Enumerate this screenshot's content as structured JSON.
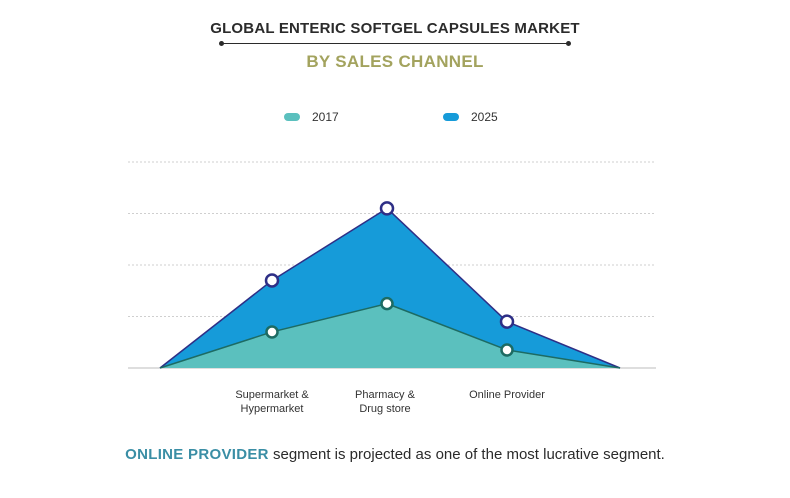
{
  "header": {
    "title": "GLOBAL ENTERIC SOFTGEL CAPSULES MARKET",
    "subtitle": "BY SALES CHANNEL"
  },
  "footnote": {
    "highlight": "ONLINE PROVIDER",
    "text": " segment is projected as one of the most lucrative segment."
  },
  "colors": {
    "series_2017": "#5bc0be",
    "series_2025": "#169bd9",
    "marker_2025": "#2e2f86",
    "marker_2017": "#1d6b63",
    "grid": "#cfcfcf"
  },
  "chart_data": {
    "type": "area",
    "categories": [
      "Supermarket & Hypermarket",
      "Pharmacy & Drug store",
      "Online Provider"
    ],
    "category_lines": [
      [
        "Supermarket &",
        "Hypermarket"
      ],
      [
        "Pharmacy &",
        "Drug store"
      ],
      [
        "Online Provider"
      ]
    ],
    "series": [
      {
        "name": "2017",
        "values": [
          0.7,
          1.25,
          0.35
        ]
      },
      {
        "name": "2025",
        "values": [
          1.7,
          3.1,
          0.9
        ]
      }
    ],
    "ylim": [
      0,
      4
    ],
    "grid": true,
    "legend_position": "top",
    "axis_ticks_shown": false
  }
}
